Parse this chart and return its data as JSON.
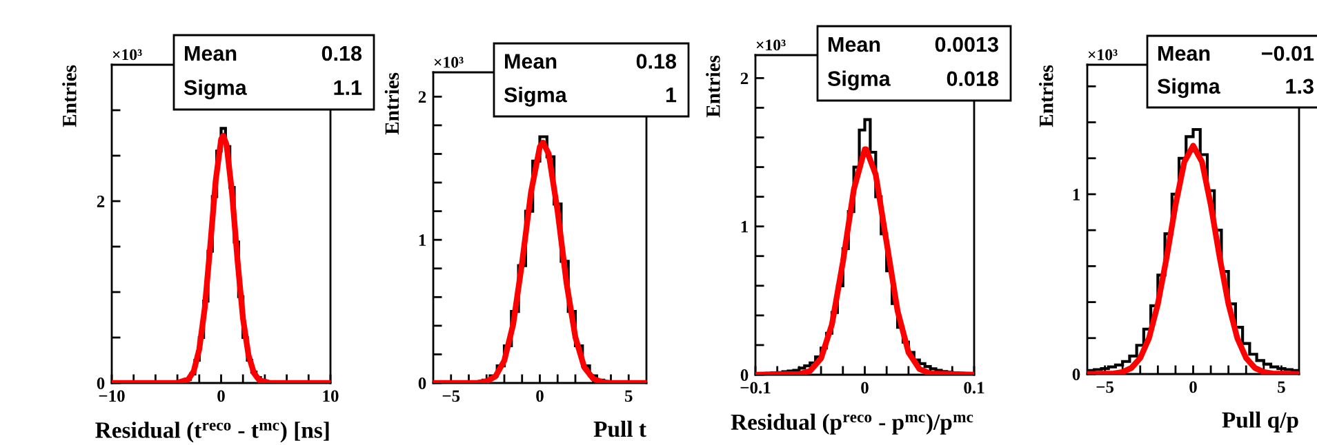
{
  "chart_data": [
    {
      "type": "histogram",
      "xlabel": "Residual (t$^{reco}$ - t$^{mc}$) [ns]",
      "ylabel": "Entries",
      "xlim": [
        -10,
        10
      ],
      "ylim": [
        0,
        3.5
      ],
      "xticks": [
        {
          "value": -10,
          "label": "−10"
        },
        {
          "value": -8,
          "label": null
        },
        {
          "value": -6,
          "label": null
        },
        {
          "value": -4,
          "label": null
        },
        {
          "value": -2,
          "label": null
        },
        0,
        {
          "value": 2,
          "label": null
        },
        {
          "value": 4,
          "label": null
        },
        {
          "value": 6,
          "label": null
        },
        {
          "value": 8,
          "label": null
        },
        10
      ],
      "yticks": [
        0,
        {
          "value": 0.5,
          "label": null
        },
        {
          "value": 1,
          "label": null
        },
        {
          "value": 1.5,
          "label": null
        },
        2,
        {
          "value": 2.5,
          "label": null
        },
        {
          "value": 3,
          "label": null
        }
      ],
      "annotations": [
        "×10³",
        "Mean",
        "0.18",
        "Sigma",
        "1.1"
      ],
      "series": [
        {
          "type": "histogram",
          "color": "#000000",
          "bins": [
            -10,
            -4,
            -3.6,
            -3.2,
            -2.8,
            -2.4,
            -2,
            -1.6,
            -1.2,
            -0.8,
            -0.4,
            0,
            0.4,
            0.8,
            1.2,
            1.6,
            2,
            2.4,
            2.8,
            3.2,
            3.6,
            4,
            10
          ],
          "values": [
            0,
            0.005,
            0.01,
            0.04,
            0.1,
            0.25,
            0.5,
            0.9,
            1.45,
            2.05,
            2.55,
            2.8,
            2.6,
            2.15,
            1.55,
            0.95,
            0.5,
            0.25,
            0.12,
            0.06,
            0.03,
            0
          ]
        },
        {
          "type": "line",
          "color": "#ff0000",
          "x": [
            -10,
            -4,
            -3,
            -2.5,
            -2,
            -1.5,
            -1,
            -0.5,
            0,
            0.2,
            0.5,
            1,
            1.5,
            2,
            2.5,
            3,
            3.5,
            4.5,
            10
          ],
          "values": [
            0,
            0.002,
            0.04,
            0.13,
            0.37,
            0.82,
            1.5,
            2.22,
            2.68,
            2.72,
            2.62,
            2.09,
            1.35,
            0.71,
            0.31,
            0.11,
            0.03,
            0,
            0
          ]
        }
      ]
    },
    {
      "type": "histogram",
      "xlabel": "Pull t",
      "ylabel": "Entries",
      "xlim": [
        -6,
        6
      ],
      "ylim": [
        0,
        2.17
      ],
      "xticks": [
        {
          "value": -5,
          "label": "−5"
        },
        {
          "value": -4,
          "label": null
        },
        {
          "value": -3,
          "label": null
        },
        {
          "value": -2,
          "label": null
        },
        {
          "value": -1,
          "label": null
        },
        0,
        {
          "value": 1,
          "label": null
        },
        {
          "value": 2,
          "label": null
        },
        {
          "value": 3,
          "label": null
        },
        {
          "value": 4,
          "label": null
        },
        5
      ],
      "yticks": [
        0,
        {
          "value": 0.2,
          "label": null
        },
        {
          "value": 0.4,
          "label": null
        },
        {
          "value": 0.6,
          "label": null
        },
        {
          "value": 0.8,
          "label": null
        },
        1,
        {
          "value": 1.2,
          "label": null
        },
        {
          "value": 1.4,
          "label": null
        },
        {
          "value": 1.6,
          "label": null
        },
        {
          "value": 1.8,
          "label": null
        },
        2
      ],
      "annotations": [
        "×10³",
        "Mean",
        "0.18",
        "Sigma",
        "1"
      ],
      "series": [
        {
          "type": "histogram",
          "color": "#000000",
          "bins": [
            -6,
            -4,
            -3.6,
            -3.2,
            -2.8,
            -2.4,
            -2,
            -1.6,
            -1.2,
            -0.8,
            -0.4,
            0,
            0.4,
            0.8,
            1.2,
            1.6,
            2,
            2.4,
            2.8,
            3.2,
            3.6,
            4,
            6
          ],
          "values": [
            0,
            0.002,
            0.006,
            0.02,
            0.05,
            0.12,
            0.26,
            0.5,
            0.82,
            1.2,
            1.55,
            1.72,
            1.58,
            1.25,
            0.85,
            0.5,
            0.26,
            0.12,
            0.05,
            0.02,
            0.008,
            0
          ]
        },
        {
          "type": "line",
          "color": "#ff0000",
          "x": [
            -6,
            -3.5,
            -3,
            -2.5,
            -2,
            -1.5,
            -1,
            -0.5,
            0,
            0.18,
            0.5,
            1,
            1.5,
            2,
            2.5,
            3,
            3.5,
            4,
            6
          ],
          "values": [
            0,
            0.002,
            0.011,
            0.046,
            0.156,
            0.41,
            0.84,
            1.33,
            1.65,
            1.68,
            1.6,
            1.2,
            0.7,
            0.32,
            0.11,
            0.031,
            0.007,
            0.001,
            0
          ]
        }
      ]
    },
    {
      "type": "histogram",
      "xlabel": "Residual (p$^{reco}$ - p$^{mc}$)/p$^{mc}$",
      "ylabel": "Entries",
      "xlim": [
        -0.1,
        0.1
      ],
      "ylim": [
        0,
        2.155
      ],
      "xticks": [
        {
          "value": -0.1,
          "label": "−0.1"
        },
        {
          "value": -0.08,
          "label": null
        },
        {
          "value": -0.06,
          "label": null
        },
        {
          "value": -0.04,
          "label": null
        },
        {
          "value": -0.02,
          "label": null
        },
        0,
        {
          "value": 0.02,
          "label": null
        },
        {
          "value": 0.04,
          "label": null
        },
        {
          "value": 0.06,
          "label": null
        },
        {
          "value": 0.08,
          "label": null
        },
        0.1
      ],
      "yticks": [
        0,
        {
          "value": 0.2,
          "label": null
        },
        {
          "value": 0.4,
          "label": null
        },
        {
          "value": 0.6,
          "label": null
        },
        {
          "value": 0.8,
          "label": null
        },
        1,
        {
          "value": 1.2,
          "label": null
        },
        {
          "value": 1.4,
          "label": null
        },
        {
          "value": 1.6,
          "label": null
        },
        {
          "value": 1.8,
          "label": null
        },
        2
      ],
      "annotations": [
        "×10³",
        "Mean",
        "0.0013",
        "Sigma",
        "0.018"
      ],
      "series": [
        {
          "type": "histogram",
          "color": "#000000",
          "bins": [
            -0.1,
            -0.095,
            -0.09,
            -0.085,
            -0.08,
            -0.075,
            -0.07,
            -0.065,
            -0.06,
            -0.055,
            -0.05,
            -0.045,
            -0.04,
            -0.035,
            -0.03,
            -0.025,
            -0.02,
            -0.015,
            -0.01,
            -0.005,
            0,
            0.005,
            0.01,
            0.015,
            0.02,
            0.025,
            0.03,
            0.035,
            0.04,
            0.045,
            0.05,
            0.055,
            0.06,
            0.065,
            0.07,
            0.075,
            0.08,
            0.085,
            0.09,
            0.095,
            0.1
          ],
          "values": [
            0.005,
            0.008,
            0.01,
            0.012,
            0.015,
            0.02,
            0.025,
            0.03,
            0.045,
            0.06,
            0.08,
            0.12,
            0.18,
            0.28,
            0.42,
            0.6,
            0.85,
            1.1,
            1.4,
            1.65,
            1.72,
            1.5,
            1.2,
            0.95,
            0.7,
            0.48,
            0.32,
            0.22,
            0.15,
            0.1,
            0.075,
            0.055,
            0.04,
            0.03,
            0.022,
            0.017,
            0.013,
            0.01,
            0.007,
            0.005
          ]
        },
        {
          "type": "line",
          "color": "#ff0000",
          "x": [
            -0.1,
            -0.06,
            -0.05,
            -0.04,
            -0.03,
            -0.02,
            -0.01,
            0,
            0.0013,
            0.01,
            0.02,
            0.03,
            0.04,
            0.05,
            0.06,
            0.1
          ],
          "values": [
            0,
            0.005,
            0.026,
            0.11,
            0.34,
            0.76,
            1.25,
            1.52,
            1.52,
            1.35,
            0.89,
            0.43,
            0.15,
            0.039,
            0.008,
            0
          ]
        }
      ]
    },
    {
      "type": "histogram",
      "xlabel": "Pull q/p",
      "ylabel": "Entries",
      "xlim": [
        -6,
        6
      ],
      "ylim": [
        0,
        1.72
      ],
      "xticks": [
        {
          "value": -5,
          "label": "−5"
        },
        {
          "value": -4,
          "label": null
        },
        {
          "value": -3,
          "label": null
        },
        {
          "value": -2,
          "label": null
        },
        {
          "value": -1,
          "label": null
        },
        0,
        {
          "value": 1,
          "label": null
        },
        {
          "value": 2,
          "label": null
        },
        {
          "value": 3,
          "label": null
        },
        {
          "value": 4,
          "label": null
        },
        5
      ],
      "yticks": [
        0,
        {
          "value": 0.2,
          "label": null
        },
        {
          "value": 0.4,
          "label": null
        },
        {
          "value": 0.6,
          "label": null
        },
        {
          "value": 0.8,
          "label": null
        },
        1,
        {
          "value": 1.2,
          "label": null
        },
        {
          "value": 1.4,
          "label": null
        },
        {
          "value": 1.6,
          "label": null
        }
      ],
      "annotations": [
        "×10³",
        "Mean",
        "−0.01",
        "Sigma",
        "1.3"
      ],
      "series": [
        {
          "type": "histogram",
          "color": "#000000",
          "bins": [
            -6,
            -5.6,
            -5.2,
            -4.8,
            -4.4,
            -4,
            -3.6,
            -3.2,
            -2.8,
            -2.4,
            -2,
            -1.6,
            -1.2,
            -0.8,
            -0.4,
            0,
            0.4,
            0.8,
            1.2,
            1.6,
            2,
            2.4,
            2.8,
            3.2,
            3.6,
            4,
            4.4,
            4.8,
            5.2,
            5.6,
            6
          ],
          "values": [
            0.02,
            0.025,
            0.03,
            0.04,
            0.05,
            0.07,
            0.1,
            0.16,
            0.25,
            0.38,
            0.55,
            0.78,
            1.0,
            1.2,
            1.32,
            1.36,
            1.22,
            1.02,
            0.8,
            0.57,
            0.39,
            0.26,
            0.17,
            0.11,
            0.075,
            0.055,
            0.04,
            0.03,
            0.025,
            0.02
          ]
        },
        {
          "type": "line",
          "color": "#ff0000",
          "x": [
            -6,
            -4.5,
            -4,
            -3.5,
            -3,
            -2.5,
            -2,
            -1.5,
            -1,
            -0.5,
            0,
            0.5,
            1,
            1.5,
            2,
            2.5,
            3,
            3.5,
            4,
            4.5,
            6
          ],
          "values": [
            0,
            0.003,
            0.011,
            0.034,
            0.089,
            0.2,
            0.39,
            0.65,
            0.94,
            1.18,
            1.27,
            1.18,
            0.94,
            0.65,
            0.39,
            0.2,
            0.089,
            0.034,
            0.011,
            0.003,
            0
          ]
        }
      ]
    }
  ]
}
